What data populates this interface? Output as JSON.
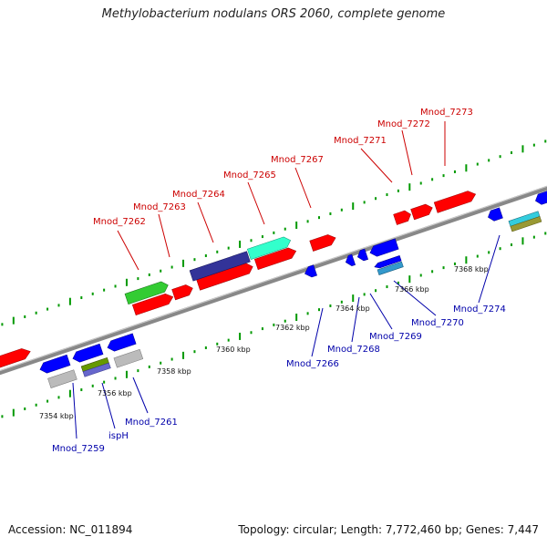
{
  "title": "Methylobacterium nodulans ORS 2060, complete genome",
  "footer": {
    "accession": "Accession: NC_011894",
    "topology": "Topology: circular; Length: 7,772,460 bp; Genes: 7,447"
  },
  "colors": {
    "forward": "#ff0000",
    "reverse": "#0000ff",
    "green": "#33cc33",
    "navy": "#333399",
    "teal": "#33ffcc",
    "grey": "#bbbbbb",
    "olive": "#669900",
    "steel": "#3399cc",
    "backbone": "#888888",
    "tick": "#009900",
    "label_forward": "#cc0000",
    "label_reverse": "#0000aa"
  },
  "scale_labels": [
    "7354 kbp",
    "7356 kbp",
    "7358 kbp",
    "7360 kbp",
    "7362 kbp",
    "7364 kbp",
    "7366 kbp",
    "7368 kbp"
  ],
  "forward_labels": [
    "Mnod_7262",
    "Mnod_7263",
    "Mnod_7264",
    "Mnod_7265",
    "Mnod_7267",
    "Mnod_7271",
    "Mnod_7272",
    "Mnod_7273"
  ],
  "reverse_labels": [
    "Mnod_7259",
    "ispH",
    "Mnod_7261",
    "Mnod_7266",
    "Mnod_7268",
    "Mnod_7269",
    "Mnod_7270",
    "Mnod_7274"
  ]
}
